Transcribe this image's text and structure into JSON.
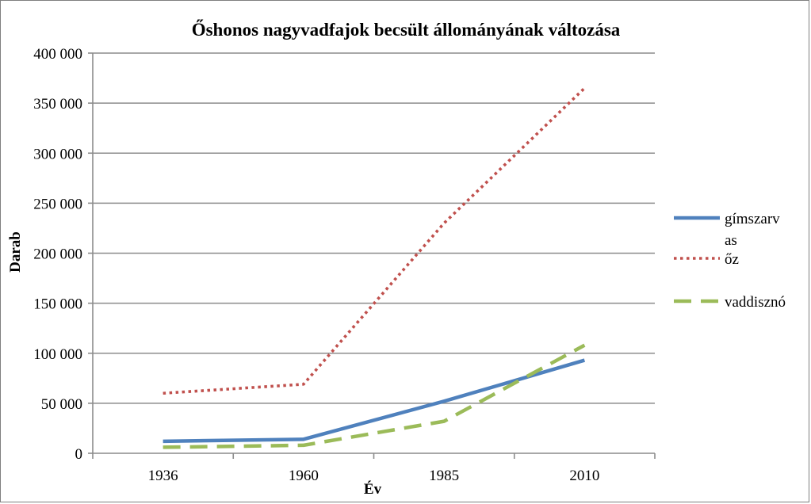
{
  "chart_data": {
    "type": "line",
    "title": "Őshonos nagyvadfajok becsült állományának változása",
    "xlabel": "Év",
    "ylabel": "Darab",
    "categories": [
      "1936",
      "1960",
      "1985",
      "2010"
    ],
    "ylim": [
      0,
      400000
    ],
    "yticks": [
      0,
      50000,
      100000,
      150000,
      200000,
      250000,
      300000,
      350000,
      400000
    ],
    "ytick_labels": [
      "0",
      "50 000",
      "100 000",
      "150 000",
      "200 000",
      "250 000",
      "300 000",
      "350 000",
      "400 000"
    ],
    "grid": true,
    "legend_position": "right",
    "series": [
      {
        "name": "gímszarvas",
        "legend_lines": [
          "gímszarv",
          "as"
        ],
        "values": [
          12000,
          14000,
          52000,
          93000
        ],
        "color": "#4f81bd",
        "style": "solid"
      },
      {
        "name": "őz",
        "legend_lines": [
          "őz"
        ],
        "values": [
          60000,
          69000,
          230000,
          365000
        ],
        "color": "#c0504d",
        "style": "dotted"
      },
      {
        "name": "vaddisznó",
        "legend_lines": [
          "vaddisznó"
        ],
        "values": [
          6000,
          8000,
          32000,
          108000
        ],
        "color": "#9bbb59",
        "style": "dashed"
      }
    ]
  }
}
